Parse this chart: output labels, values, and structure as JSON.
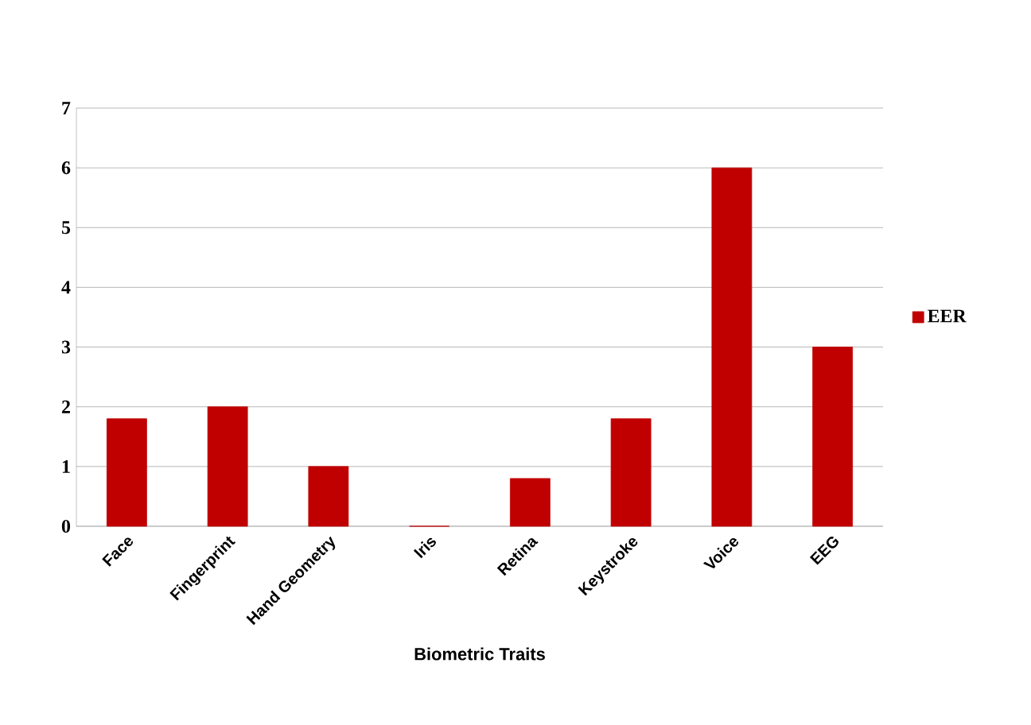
{
  "chart_data": {
    "type": "bar",
    "xlabel": "Biometric Traits",
    "categories": [
      "Face",
      "Fingerprint",
      "Hand Geometry",
      "Iris",
      "Retina",
      "Keystroke",
      "Voice",
      "EEG"
    ],
    "series": [
      {
        "name": "EER",
        "color": "#c00000",
        "values": [
          1.8,
          2,
          1,
          0,
          0.8,
          1.8,
          6,
          3
        ]
      }
    ],
    "ylim": [
      0,
      7
    ],
    "yticks": [
      0,
      1,
      2,
      3,
      4,
      5,
      6,
      7
    ],
    "grid": "y",
    "legend": "right"
  }
}
